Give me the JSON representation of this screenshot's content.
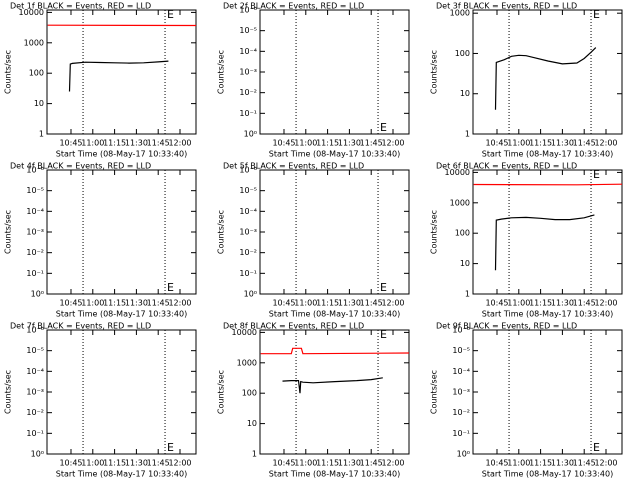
{
  "chart_data": [
    {
      "type": "line",
      "title": "Det 1f BLACK = Events, RED = LLD",
      "xlabel": "Start Time (08-May-17 10:33:40)",
      "ylabel": "Counts/sec",
      "xlim": [
        628.5,
        731
      ],
      "xticks": [
        {
          "value": 645,
          "label": "10:45"
        },
        {
          "value": 660,
          "label": "11:00"
        },
        {
          "value": 675,
          "label": "11:15"
        },
        {
          "value": 690,
          "label": "11:30"
        },
        {
          "value": 705,
          "label": "11:45"
        },
        {
          "value": 720,
          "label": "12:00"
        }
      ],
      "ylog": true,
      "ylim": [
        1,
        12000
      ],
      "yticks": [
        1,
        10,
        100,
        1000,
        10000
      ],
      "vlines": [
        653.3,
        709.7
      ],
      "annotation": "E",
      "annotation_side": "top",
      "series": [
        {
          "name": "Events",
          "color": "#000000",
          "x": [
            644,
            644.5,
            646,
            655,
            665,
            675,
            685,
            695,
            705,
            712
          ],
          "values": [
            25,
            200,
            210,
            230,
            225,
            220,
            215,
            220,
            235,
            250
          ]
        },
        {
          "name": "LLD",
          "color": "#ff0000",
          "x": [
            629,
            731
          ],
          "values": [
            3800,
            3700
          ]
        }
      ]
    },
    {
      "type": "line",
      "title": "Det 2f BLACK = Events, RED = LLD",
      "xlabel": "Start Time (08-May-17 10:33:40)",
      "ylabel": "Counts/sec",
      "xlim": [
        628.5,
        731
      ],
      "xticks": [
        {
          "value": 645,
          "label": "10:45"
        },
        {
          "value": 660,
          "label": "11:00"
        },
        {
          "value": 675,
          "label": "11:15"
        },
        {
          "value": 690,
          "label": "11:30"
        },
        {
          "value": 705,
          "label": "11:45"
        },
        {
          "value": 720,
          "label": "12:00"
        }
      ],
      "ylog": true,
      "ylim": [
        1,
        1e-06
      ],
      "yticks": [
        {
          "value": 1,
          "label": "10⁰"
        },
        {
          "value": 0.1,
          "label": "10⁻¹"
        },
        {
          "value": 0.01,
          "label": "10⁻²"
        },
        {
          "value": 0.001,
          "label": "10⁻³"
        },
        {
          "value": 0.0001,
          "label": "10⁻⁴"
        },
        {
          "value": 1e-05,
          "label": "10⁻⁵"
        },
        {
          "value": 1e-06,
          "label": "10⁻⁶"
        }
      ],
      "vlines": [
        653.3,
        709.7
      ],
      "annotation": "E",
      "annotation_side": "bottom",
      "series": []
    },
    {
      "type": "line",
      "title": "Det 3f BLACK = Events, RED = LLD",
      "xlabel": "Start Time (08-May-17 10:33:40)",
      "ylabel": "Counts/sec",
      "xlim": [
        628.5,
        731
      ],
      "xticks": [
        {
          "value": 645,
          "label": "10:45"
        },
        {
          "value": 660,
          "label": "11:00"
        },
        {
          "value": 675,
          "label": "11:15"
        },
        {
          "value": 690,
          "label": "11:30"
        },
        {
          "value": 705,
          "label": "11:45"
        },
        {
          "value": 720,
          "label": "12:00"
        }
      ],
      "ylog": true,
      "ylim": [
        1,
        1200
      ],
      "yticks": [
        1,
        10,
        100,
        1000
      ],
      "vlines": [
        653.3,
        709.7
      ],
      "annotation": "E",
      "annotation_side": "top",
      "series": [
        {
          "name": "Events",
          "color": "#000000",
          "x": [
            644,
            644.5,
            650,
            655,
            660,
            665,
            670,
            680,
            690,
            700,
            705,
            710,
            713
          ],
          "values": [
            4,
            60,
            70,
            85,
            90,
            88,
            80,
            65,
            55,
            58,
            75,
            110,
            140
          ]
        }
      ]
    },
    {
      "type": "line",
      "title": "Det 4f BLACK = Events, RED = LLD",
      "xlabel": "Start Time (08-May-17 10:33:40)",
      "ylabel": "Counts/sec",
      "xlim": [
        628.5,
        731
      ],
      "xticks": [
        {
          "value": 645,
          "label": "10:45"
        },
        {
          "value": 660,
          "label": "11:00"
        },
        {
          "value": 675,
          "label": "11:15"
        },
        {
          "value": 690,
          "label": "11:30"
        },
        {
          "value": 705,
          "label": "11:45"
        },
        {
          "value": 720,
          "label": "12:00"
        }
      ],
      "ylog": true,
      "ylim": [
        1,
        1e-06
      ],
      "yticks": [
        {
          "value": 1,
          "label": "10⁰"
        },
        {
          "value": 0.1,
          "label": "10⁻¹"
        },
        {
          "value": 0.01,
          "label": "10⁻²"
        },
        {
          "value": 0.001,
          "label": "10⁻³"
        },
        {
          "value": 0.0001,
          "label": "10⁻⁴"
        },
        {
          "value": 1e-05,
          "label": "10⁻⁵"
        },
        {
          "value": 1e-06,
          "label": "10⁻⁶"
        }
      ],
      "vlines": [
        653.3,
        709.7
      ],
      "annotation": "E",
      "annotation_side": "bottom",
      "series": []
    },
    {
      "type": "line",
      "title": "Det 5f BLACK = Events, RED = LLD",
      "xlabel": "Start Time (08-May-17 10:33:40)",
      "ylabel": "Counts/sec",
      "xlim": [
        628.5,
        731
      ],
      "xticks": [
        {
          "value": 645,
          "label": "10:45"
        },
        {
          "value": 660,
          "label": "11:00"
        },
        {
          "value": 675,
          "label": "11:15"
        },
        {
          "value": 690,
          "label": "11:30"
        },
        {
          "value": 705,
          "label": "11:45"
        },
        {
          "value": 720,
          "label": "12:00"
        }
      ],
      "ylog": true,
      "ylim": [
        1,
        1e-06
      ],
      "yticks": [
        {
          "value": 1,
          "label": "10⁰"
        },
        {
          "value": 0.1,
          "label": "10⁻¹"
        },
        {
          "value": 0.01,
          "label": "10⁻²"
        },
        {
          "value": 0.001,
          "label": "10⁻³"
        },
        {
          "value": 0.0001,
          "label": "10⁻⁴"
        },
        {
          "value": 1e-05,
          "label": "10⁻⁵"
        },
        {
          "value": 1e-06,
          "label": "10⁻⁶"
        }
      ],
      "vlines": [
        653.3,
        709.7
      ],
      "annotation": "E",
      "annotation_side": "bottom",
      "series": []
    },
    {
      "type": "line",
      "title": "Det 6f BLACK = Events, RED = LLD",
      "xlabel": "Start Time (08-May-17 10:33:40)",
      "ylabel": "Counts/sec",
      "xlim": [
        628.5,
        731
      ],
      "xticks": [
        {
          "value": 645,
          "label": "10:45"
        },
        {
          "value": 660,
          "label": "11:00"
        },
        {
          "value": 675,
          "label": "11:15"
        },
        {
          "value": 690,
          "label": "11:30"
        },
        {
          "value": 705,
          "label": "11:45"
        },
        {
          "value": 720,
          "label": "12:00"
        }
      ],
      "ylog": true,
      "ylim": [
        1,
        12000
      ],
      "yticks": [
        1,
        10,
        100,
        1000,
        10000
      ],
      "vlines": [
        653.3,
        709.7
      ],
      "annotation": "E",
      "annotation_side": "top",
      "series": [
        {
          "name": "Events",
          "color": "#000000",
          "x": [
            644,
            644.5,
            648,
            655,
            665,
            675,
            685,
            695,
            705,
            712
          ],
          "values": [
            6,
            270,
            290,
            320,
            330,
            310,
            280,
            280,
            320,
            400
          ]
        },
        {
          "name": "LLD",
          "color": "#ff0000",
          "x": [
            629,
            700,
            731
          ],
          "values": [
            4000,
            3900,
            4100
          ]
        }
      ]
    },
    {
      "type": "line",
      "title": "Det 7f BLACK = Events, RED = LLD",
      "xlabel": "Start Time (08-May-17 10:33:40)",
      "ylabel": "Counts/sec",
      "xlim": [
        628.5,
        731
      ],
      "xticks": [
        {
          "value": 645,
          "label": "10:45"
        },
        {
          "value": 660,
          "label": "11:00"
        },
        {
          "value": 675,
          "label": "11:15"
        },
        {
          "value": 690,
          "label": "11:30"
        },
        {
          "value": 705,
          "label": "11:45"
        },
        {
          "value": 720,
          "label": "12:00"
        }
      ],
      "ylog": true,
      "ylim": [
        1,
        1e-06
      ],
      "yticks": [
        {
          "value": 1,
          "label": "10⁰"
        },
        {
          "value": 0.1,
          "label": "10⁻¹"
        },
        {
          "value": 0.01,
          "label": "10⁻²"
        },
        {
          "value": 0.001,
          "label": "10⁻³"
        },
        {
          "value": 0.0001,
          "label": "10⁻⁴"
        },
        {
          "value": 1e-05,
          "label": "10⁻⁵"
        },
        {
          "value": 1e-06,
          "label": "10⁻⁶"
        }
      ],
      "vlines": [
        653.3,
        709.7
      ],
      "annotation": "E",
      "annotation_side": "bottom",
      "series": []
    },
    {
      "type": "line",
      "title": "Det 8f BLACK = Events, RED = LLD",
      "xlabel": "Start Time (08-May-17 10:33:40)",
      "ylabel": "Counts/sec",
      "xlim": [
        628.5,
        731
      ],
      "xticks": [
        {
          "value": 645,
          "label": "10:45"
        },
        {
          "value": 660,
          "label": "11:00"
        },
        {
          "value": 675,
          "label": "11:15"
        },
        {
          "value": 690,
          "label": "11:30"
        },
        {
          "value": 705,
          "label": "11:45"
        },
        {
          "value": 720,
          "label": "12:00"
        }
      ],
      "ylog": true,
      "ylim": [
        1,
        12000
      ],
      "yticks": [
        1,
        10,
        100,
        1000,
        10000
      ],
      "vlines": [
        653.3,
        709.7
      ],
      "annotation": "E",
      "annotation_side": "top",
      "series": [
        {
          "name": "Events",
          "color": "#000000",
          "x": [
            644,
            650,
            655,
            656,
            656.5,
            658,
            665,
            680,
            695,
            705,
            713
          ],
          "values": [
            250,
            260,
            260,
            100,
            240,
            230,
            220,
            240,
            260,
            280,
            320
          ]
        },
        {
          "name": "LLD",
          "color": "#ff0000",
          "x": [
            629,
            650,
            651,
            657,
            658,
            731
          ],
          "values": [
            2000,
            2000,
            3000,
            3000,
            2000,
            2100
          ]
        }
      ]
    },
    {
      "type": "line",
      "title": "Det 9f BLACK = Events, RED = LLD",
      "xlabel": "Start Time (08-May-17 10:33:40)",
      "ylabel": "Counts/sec",
      "xlim": [
        628.5,
        731
      ],
      "xticks": [
        {
          "value": 645,
          "label": "10:45"
        },
        {
          "value": 660,
          "label": "11:00"
        },
        {
          "value": 675,
          "label": "11:15"
        },
        {
          "value": 690,
          "label": "11:30"
        },
        {
          "value": 705,
          "label": "11:45"
        },
        {
          "value": 720,
          "label": "12:00"
        }
      ],
      "ylog": true,
      "ylim": [
        1,
        1e-06
      ],
      "yticks": [
        {
          "value": 1,
          "label": "10⁰"
        },
        {
          "value": 0.1,
          "label": "10⁻¹"
        },
        {
          "value": 0.01,
          "label": "10⁻²"
        },
        {
          "value": 0.001,
          "label": "10⁻³"
        },
        {
          "value": 0.0001,
          "label": "10⁻⁴"
        },
        {
          "value": 1e-05,
          "label": "10⁻⁵"
        },
        {
          "value": 1e-06,
          "label": "10⁻⁶"
        }
      ],
      "vlines": [
        653.3,
        709.7
      ],
      "annotation": "E",
      "annotation_side": "bottom",
      "series": []
    }
  ]
}
